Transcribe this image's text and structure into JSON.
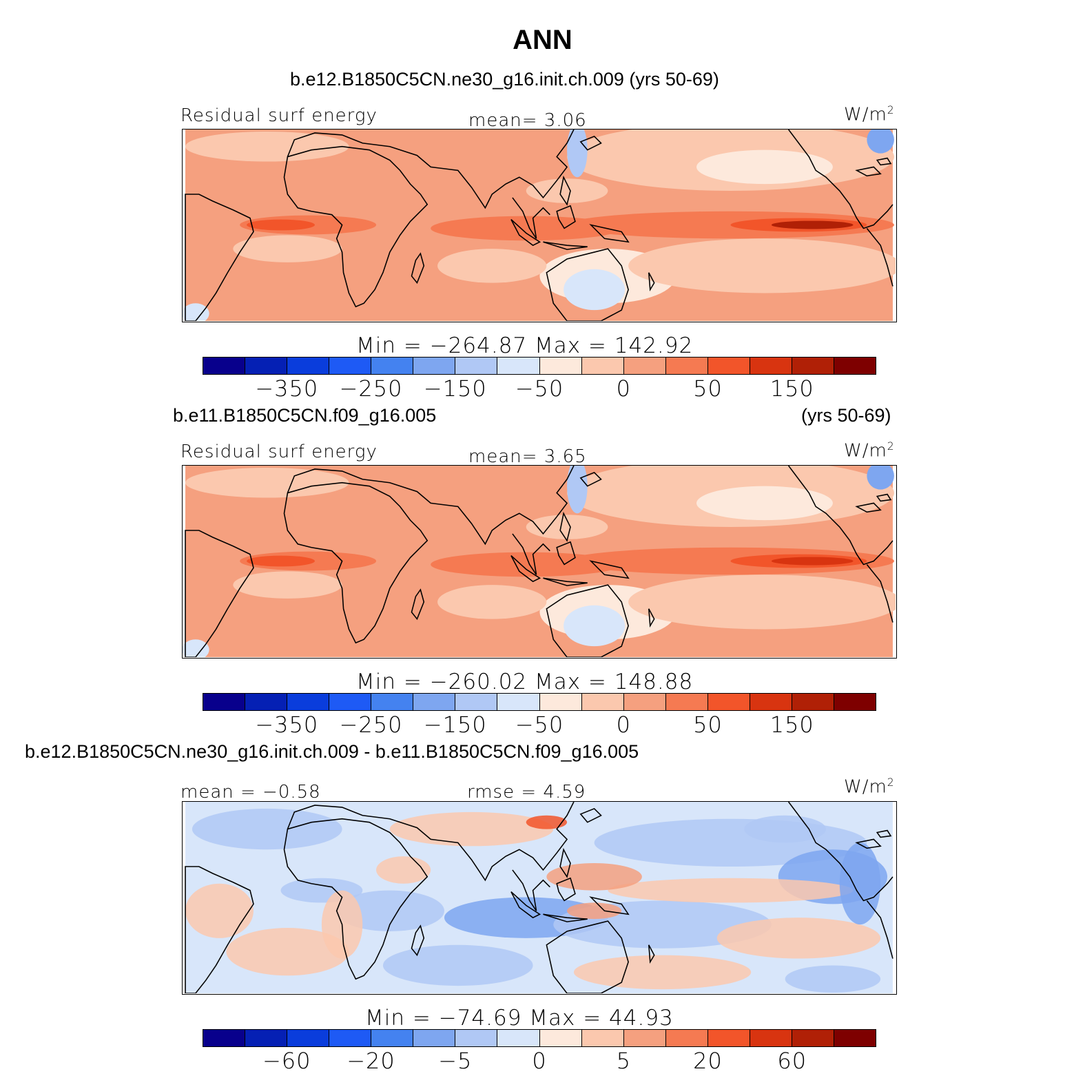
{
  "title": "ANN",
  "colors": [
    "#08008c",
    "#0520b4",
    "#0a3ddc",
    "#1e5af5",
    "#4482f0",
    "#7ea6f0",
    "#b0c8f5",
    "#d8e6fa",
    "#fde9dc",
    "#fbc8ae",
    "#f5a07f",
    "#f57a52",
    "#f2552a",
    "#d83410",
    "#b02006",
    "#7e0000"
  ],
  "panels": [
    {
      "subtitle": "b.e12.B1850C5CN.ne30_g16.init.ch.009 (yrs 50-69)",
      "left_label": "Residual surf energy",
      "center_label": "mean=    3.06",
      "units_base": "W/m",
      "units_sup": "2",
      "minmax": "Min  =  −264.87  Max  =  142.92",
      "ticks": [
        "−350",
        "−250",
        "−150",
        "−50",
        "0",
        "50",
        "150"
      ],
      "variant": "model1"
    },
    {
      "subtitle": "b.e11.B1850C5CN.f09_g16.005",
      "subtitle_right": "(yrs 50-69)",
      "left_label": "Residual surf energy",
      "center_label": "mean=    3.65",
      "units_base": "W/m",
      "units_sup": "2",
      "minmax": "Min  =  −260.02  Max  =  148.88",
      "ticks": [
        "−350",
        "−250",
        "−150",
        "−50",
        "0",
        "50",
        "150"
      ],
      "variant": "model2"
    },
    {
      "subtitle": "b.e12.B1850C5CN.ne30_g16.init.ch.009 - b.e11.B1850C5CN.f09_g16.005",
      "left_label": "mean  =   −0.58",
      "center_label": "rmse  =    4.59",
      "units_base": "W/m",
      "units_sup": "2",
      "minmax": "Min  =  −74.69  Max  =   44.93",
      "ticks": [
        "−60",
        "−20",
        "−5",
        "0",
        "5",
        "20",
        "60"
      ],
      "variant": "diff"
    }
  ]
}
